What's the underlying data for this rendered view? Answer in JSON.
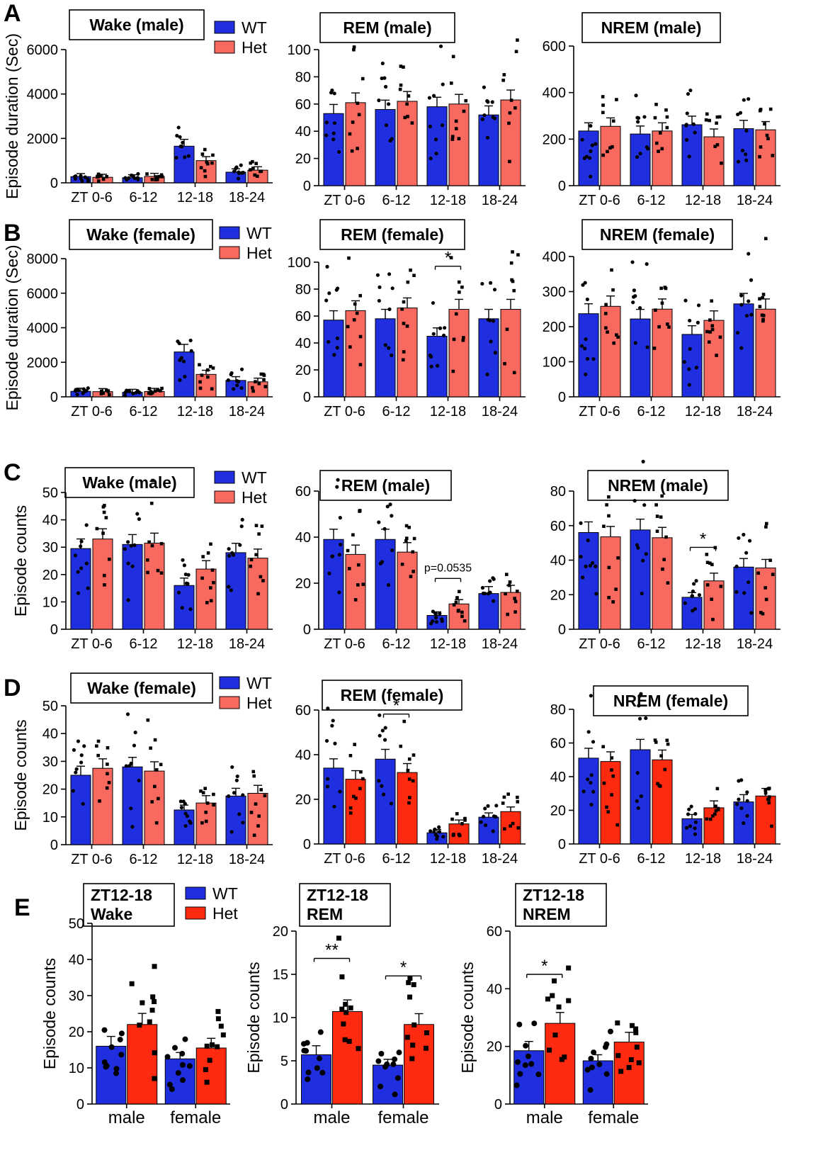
{
  "colors": {
    "wt": "#1f2fe0",
    "het_light": "#f8695f",
    "het_dark": "#ff2a10",
    "axis": "#000000"
  },
  "rows": [
    {
      "label": "A"
    },
    {
      "label": "B"
    },
    {
      "label": "C"
    },
    {
      "label": "D"
    },
    {
      "label": "E"
    }
  ],
  "chart_data": [
    {
      "id": "A1",
      "type": "bar",
      "title": "Wake (male)",
      "ylabel": "Episode duration (Sec)",
      "ylim": [
        0,
        6000
      ],
      "yticks": [
        0,
        2000,
        4000,
        6000
      ],
      "categories": [
        "ZT 0-6",
        "6-12",
        "12-18",
        "18-24"
      ],
      "series": [
        {
          "name": "WT",
          "values": [
            280,
            230,
            1650,
            480
          ]
        },
        {
          "name": "Het",
          "values": [
            250,
            290,
            1000,
            570
          ]
        }
      ],
      "legend": [
        "WT",
        "Het"
      ]
    },
    {
      "id": "A2",
      "type": "bar",
      "title": "REM  (male)",
      "ylim": [
        0,
        100
      ],
      "yticks": [
        0,
        20,
        40,
        60,
        80,
        100
      ],
      "categories": [
        "ZT 0-6",
        "6-12",
        "12-18",
        "18-24"
      ],
      "series": [
        {
          "name": "WT",
          "values": [
            53,
            56,
            58,
            52
          ]
        },
        {
          "name": "Het",
          "values": [
            61,
            62,
            60,
            63
          ]
        }
      ]
    },
    {
      "id": "A3",
      "type": "bar",
      "title": "NREM  (male)",
      "ylim": [
        0,
        600
      ],
      "yticks": [
        0,
        200,
        400,
        600
      ],
      "categories": [
        "ZT 0-6",
        "6-12",
        "12-18",
        "18-24"
      ],
      "series": [
        {
          "name": "WT",
          "values": [
            235,
            222,
            262,
            245
          ]
        },
        {
          "name": "Het",
          "values": [
            255,
            235,
            210,
            240
          ]
        }
      ]
    },
    {
      "id": "B1",
      "type": "bar",
      "title": "Wake (female)",
      "ylabel": "Episode duration (Sec)",
      "ylim": [
        0,
        8000
      ],
      "yticks": [
        0,
        2000,
        4000,
        6000,
        8000
      ],
      "categories": [
        "ZT 0-6",
        "6-12",
        "12-18",
        "18-24"
      ],
      "series": [
        {
          "name": "WT",
          "values": [
            320,
            260,
            2600,
            950
          ]
        },
        {
          "name": "Het",
          "values": [
            300,
            310,
            1300,
            870
          ]
        }
      ],
      "legend": [
        "WT",
        "Het"
      ]
    },
    {
      "id": "B2",
      "type": "bar",
      "title": "REM  (female)",
      "ylim": [
        0,
        100
      ],
      "yticks": [
        0,
        20,
        40,
        60,
        80,
        100
      ],
      "categories": [
        "ZT 0-6",
        "6-12",
        "12-18",
        "18-24"
      ],
      "series": [
        {
          "name": "WT",
          "values": [
            57,
            58,
            45,
            58
          ]
        },
        {
          "name": "Het",
          "values": [
            64,
            66,
            65,
            65
          ]
        }
      ],
      "annotations": [
        {
          "text": "*",
          "between": [
            2,
            2
          ]
        }
      ]
    },
    {
      "id": "B3",
      "type": "bar",
      "title": "NREM  (female)",
      "ylim": [
        0,
        400
      ],
      "yticks": [
        0,
        100,
        200,
        300,
        400
      ],
      "categories": [
        "ZT 0-6",
        "6-12",
        "12-18",
        "18-24"
      ],
      "series": [
        {
          "name": "WT",
          "values": [
            237,
            222,
            178,
            265
          ]
        },
        {
          "name": "Het",
          "values": [
            258,
            250,
            218,
            250
          ]
        }
      ]
    },
    {
      "id": "C1",
      "type": "bar",
      "title": "Wake (male)",
      "ylabel": "Episode counts",
      "ylim": [
        0,
        50
      ],
      "yticks": [
        0,
        10,
        20,
        30,
        40,
        50
      ],
      "categories": [
        "ZT 0-6",
        "6-12",
        "12-18",
        "18-24"
      ],
      "series": [
        {
          "name": "WT",
          "values": [
            29.5,
            31,
            16,
            28
          ]
        },
        {
          "name": "Het",
          "values": [
            33,
            31.5,
            22,
            26
          ]
        }
      ],
      "legend": [
        "WT",
        "Het"
      ]
    },
    {
      "id": "C2",
      "type": "bar",
      "title": "REM  (male)",
      "ylim": [
        0,
        60
      ],
      "yticks": [
        0,
        20,
        40,
        60
      ],
      "categories": [
        "ZT 0-6",
        "6-12",
        "12-18",
        "18-24"
      ],
      "series": [
        {
          "name": "WT",
          "values": [
            39,
            39,
            6,
            15.5
          ]
        },
        {
          "name": "Het",
          "values": [
            32.5,
            33.5,
            11,
            16
          ]
        }
      ],
      "annotations": [
        {
          "text": "p=0.0535",
          "between": [
            2,
            2
          ]
        }
      ]
    },
    {
      "id": "C3",
      "type": "bar",
      "title": "NREM  (male)",
      "ylim": [
        0,
        80
      ],
      "yticks": [
        0,
        20,
        40,
        60,
        80
      ],
      "categories": [
        "ZT 0-6",
        "6-12",
        "12-18",
        "18-24"
      ],
      "series": [
        {
          "name": "WT",
          "values": [
            56,
            57.5,
            18.5,
            36
          ]
        },
        {
          "name": "Het",
          "values": [
            53.5,
            53,
            28,
            35.5
          ]
        }
      ],
      "annotations": [
        {
          "text": "*",
          "between": [
            2,
            2
          ]
        }
      ]
    },
    {
      "id": "D1",
      "type": "bar",
      "title": "Wake (female)",
      "ylabel": "Episode counts",
      "ylim": [
        0,
        50
      ],
      "yticks": [
        0,
        10,
        20,
        30,
        40,
        50
      ],
      "categories": [
        "ZT 0-6",
        "6-12",
        "12-18",
        "18-24"
      ],
      "series": [
        {
          "name": "WT",
          "values": [
            25,
            28,
            12.5,
            17.5
          ]
        },
        {
          "name": "Het",
          "values": [
            27.5,
            26.5,
            15,
            18.5
          ]
        }
      ],
      "legend": [
        "WT",
        "Het"
      ]
    },
    {
      "id": "D2",
      "type": "bar",
      "title": "REM  (female)",
      "ylim": [
        0,
        60
      ],
      "yticks": [
        0,
        20,
        40,
        60
      ],
      "categories": [
        "ZT 0-6",
        "6-12",
        "12-18",
        "18-24"
      ],
      "series": [
        {
          "name": "WT",
          "values": [
            34,
            38,
            5,
            12
          ]
        },
        {
          "name": "Het",
          "values": [
            29,
            32,
            9,
            14.5
          ]
        }
      ],
      "annotations": [
        {
          "text": "*",
          "between": [
            1,
            1
          ]
        }
      ]
    },
    {
      "id": "D3",
      "type": "bar",
      "title": "NREM  (female)",
      "ylim": [
        0,
        80
      ],
      "yticks": [
        0,
        20,
        40,
        60,
        80
      ],
      "categories": [
        "ZT 0-6",
        "6-12",
        "12-18",
        "18-24"
      ],
      "series": [
        {
          "name": "WT",
          "values": [
            51,
            56,
            15,
            25
          ]
        },
        {
          "name": "Het",
          "values": [
            49,
            50,
            21.5,
            28.5
          ]
        }
      ]
    },
    {
      "id": "E1",
      "type": "bar",
      "title": [
        "ZT12-18",
        "Wake"
      ],
      "ylabel": "Episode counts",
      "ylim": [
        0,
        50
      ],
      "yticks": [
        0,
        10,
        20,
        30,
        40,
        50
      ],
      "categories": [
        "male",
        "female"
      ],
      "series": [
        {
          "name": "WT",
          "values": [
            16,
            12.5
          ]
        },
        {
          "name": "Het",
          "values": [
            22,
            15.5
          ]
        }
      ],
      "legend": [
        "WT",
        "Het"
      ]
    },
    {
      "id": "E2",
      "type": "bar",
      "title": [
        "ZT12-18",
        "REM"
      ],
      "ylabel": "Episode counts",
      "ylim": [
        0,
        20
      ],
      "yticks": [
        0,
        5,
        10,
        15,
        20
      ],
      "categories": [
        "male",
        "female"
      ],
      "series": [
        {
          "name": "WT",
          "values": [
            5.7,
            4.5
          ]
        },
        {
          "name": "Het",
          "values": [
            10.7,
            9.2
          ]
        }
      ],
      "annotations": [
        {
          "text": "**",
          "between": [
            0,
            0
          ]
        },
        {
          "text": "*",
          "between": [
            1,
            1
          ]
        }
      ]
    },
    {
      "id": "E3",
      "type": "bar",
      "title": [
        "ZT12-18",
        "NREM"
      ],
      "ylabel": "Episode counts",
      "ylim": [
        0,
        60
      ],
      "yticks": [
        0,
        20,
        40,
        60
      ],
      "categories": [
        "male",
        "female"
      ],
      "series": [
        {
          "name": "WT",
          "values": [
            18.5,
            15
          ]
        },
        {
          "name": "Het",
          "values": [
            28,
            21.5
          ]
        }
      ],
      "annotations": [
        {
          "text": "*",
          "between": [
            0,
            0
          ]
        }
      ]
    }
  ]
}
